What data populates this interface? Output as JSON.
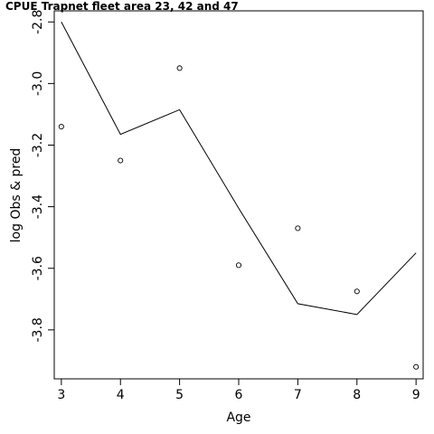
{
  "chart_data": {
    "type": "line",
    "title": "CPUE Trapnet fleet area 23, 42 and 47",
    "xlabel": "Age",
    "ylabel": "log Obs & pred",
    "x_ticks": [
      3,
      4,
      5,
      6,
      7,
      8,
      9
    ],
    "y_ticks": [
      -2.8,
      -3.0,
      -3.2,
      -3.4,
      -3.6,
      -3.8
    ],
    "y_tick_labels": [
      "-2.8",
      "-3.0",
      "-3.2",
      "-3.4",
      "-3.6",
      "-3.8"
    ],
    "xlim": [
      2.88,
      9.12
    ],
    "ylim": [
      -3.959,
      -2.764
    ],
    "grid": false,
    "series": [
      {
        "kind": "line",
        "x": [
          3,
          4,
          5,
          6,
          7,
          8,
          9
        ],
        "values": [
          -2.8,
          -3.165,
          -3.085,
          -3.405,
          -3.715,
          -3.75,
          -3.55
        ]
      },
      {
        "kind": "points",
        "x": [
          3,
          4,
          5,
          6,
          7,
          8,
          9
        ],
        "values": [
          -3.14,
          -3.25,
          -2.95,
          -3.59,
          -3.47,
          -3.675,
          -3.92
        ]
      }
    ]
  }
}
